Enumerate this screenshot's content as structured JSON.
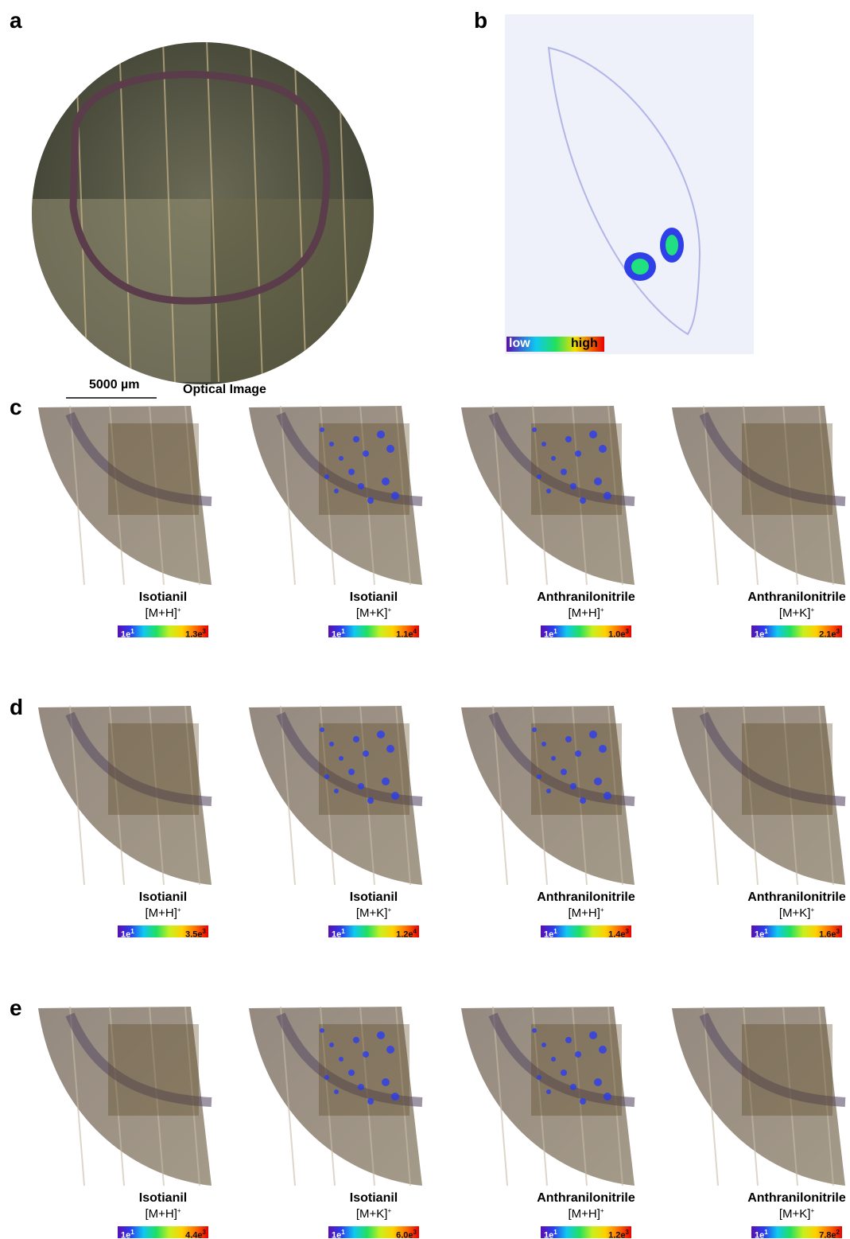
{
  "panel_a": {
    "label": "a",
    "scale_bar": "5000 µm",
    "caption": "Optical Image"
  },
  "panel_b": {
    "label": "b",
    "colorbar": {
      "low": "low",
      "high": "high"
    }
  },
  "rows": [
    {
      "label": "c",
      "panels": [
        {
          "compound": "Isotianil",
          "adduct": {
            "ion": "[M+H]",
            "charge": "+"
          },
          "min": {
            "base": "1e",
            "exp": "1"
          },
          "max": {
            "base": "1.3e",
            "exp": "3"
          }
        },
        {
          "compound": "Isotianil",
          "adduct": {
            "ion": "[M+K]",
            "charge": "+"
          },
          "min": {
            "base": "1e",
            "exp": "1"
          },
          "max": {
            "base": "1.1e",
            "exp": "4"
          }
        },
        {
          "compound": "Anthranilonitrile",
          "adduct": {
            "ion": "[M+H]",
            "charge": "+"
          },
          "min": {
            "base": "1e",
            "exp": "1"
          },
          "max": {
            "base": "1.0e",
            "exp": "3"
          }
        },
        {
          "compound": "Anthranilonitrile",
          "adduct": {
            "ion": "[M+K]",
            "charge": "+"
          },
          "min": {
            "base": "1e",
            "exp": "1"
          },
          "max": {
            "base": "2.1e",
            "exp": "3"
          }
        }
      ]
    },
    {
      "label": "d",
      "panels": [
        {
          "compound": "Isotianil",
          "adduct": {
            "ion": "[M+H]",
            "charge": "+"
          },
          "min": {
            "base": "1e",
            "exp": "1"
          },
          "max": {
            "base": "3.5e",
            "exp": "3"
          }
        },
        {
          "compound": "Isotianil",
          "adduct": {
            "ion": "[M+K]",
            "charge": "+"
          },
          "min": {
            "base": "1e",
            "exp": "1"
          },
          "max": {
            "base": "1.2e",
            "exp": "4"
          }
        },
        {
          "compound": "Anthranilonitrile",
          "adduct": {
            "ion": "[M+H]",
            "charge": "+"
          },
          "min": {
            "base": "1e",
            "exp": "1"
          },
          "max": {
            "base": "1.4e",
            "exp": "3"
          }
        },
        {
          "compound": "Anthranilonitrile",
          "adduct": {
            "ion": "[M+K]",
            "charge": "+"
          },
          "min": {
            "base": "1e",
            "exp": "1"
          },
          "max": {
            "base": "1.6e",
            "exp": "3"
          }
        }
      ]
    },
    {
      "label": "e",
      "panels": [
        {
          "compound": "Isotianil",
          "adduct": {
            "ion": "[M+H]",
            "charge": "+"
          },
          "min": {
            "base": "1e",
            "exp": "1"
          },
          "max": {
            "base": "4.4e",
            "exp": "3"
          }
        },
        {
          "compound": "Isotianil",
          "adduct": {
            "ion": "[M+K]",
            "charge": "+"
          },
          "min": {
            "base": "1e",
            "exp": "1"
          },
          "max": {
            "base": "6.0e",
            "exp": "3"
          }
        },
        {
          "compound": "Anthranilonitrile",
          "adduct": {
            "ion": "[M+H]",
            "charge": "+"
          },
          "min": {
            "base": "1e",
            "exp": "1"
          },
          "max": {
            "base": "1.2e",
            "exp": "3"
          }
        },
        {
          "compound": "Anthranilonitrile",
          "adduct": {
            "ion": "[M+K]",
            "charge": "+"
          },
          "min": {
            "base": "1e",
            "exp": "1"
          },
          "max": {
            "base": "7.8e",
            "exp": "2"
          }
        }
      ]
    }
  ]
}
